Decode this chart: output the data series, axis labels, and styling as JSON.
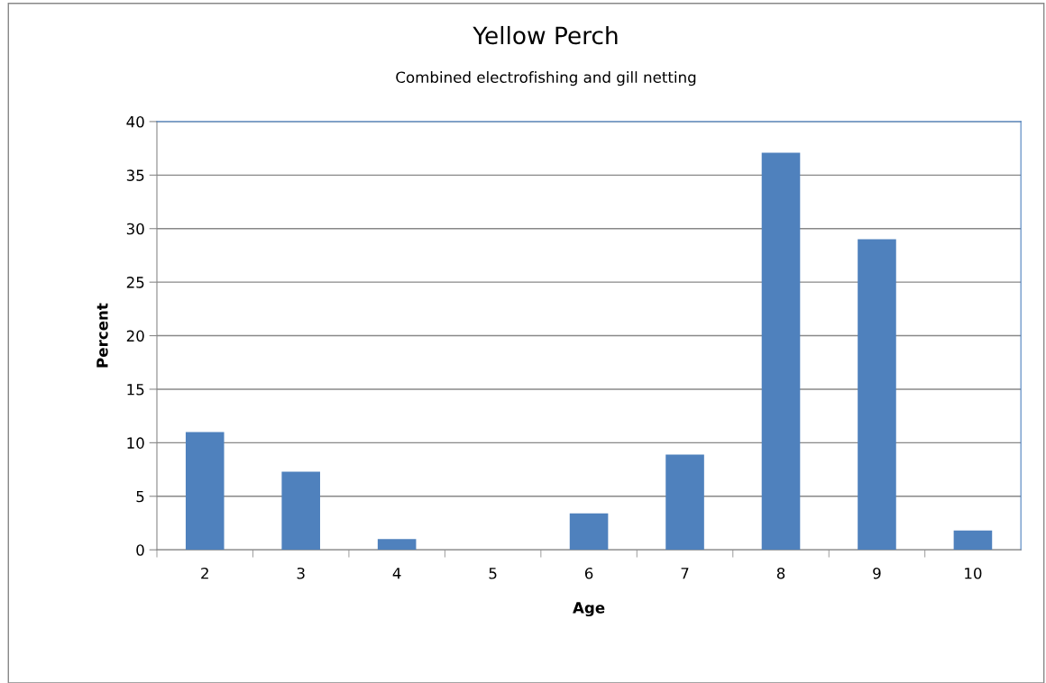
{
  "chart_data": {
    "type": "bar",
    "title": "Yellow Perch",
    "subtitle": "Combined electrofishing and gill netting",
    "xlabel": "Age",
    "ylabel": "Percent",
    "categories": [
      "2",
      "3",
      "4",
      "5",
      "6",
      "7",
      "8",
      "9",
      "10"
    ],
    "values": [
      11.0,
      7.3,
      1.0,
      0,
      3.4,
      8.9,
      37.1,
      29.0,
      1.8
    ],
    "color": "#4f81bd",
    "ylim": [
      0,
      40
    ],
    "yticks": [
      0,
      5,
      10,
      15,
      20,
      25,
      30,
      35,
      40
    ],
    "grid": "y",
    "legend": false
  }
}
